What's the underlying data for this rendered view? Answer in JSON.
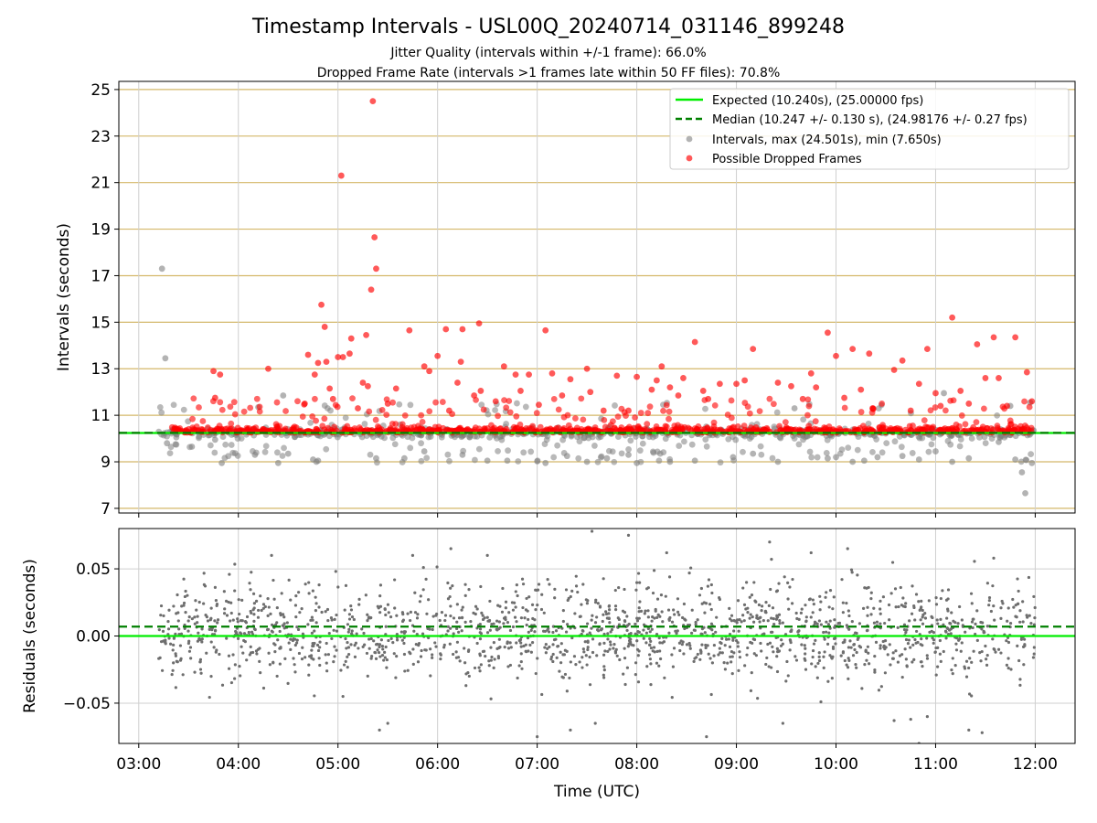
{
  "chart_data": [
    {
      "type": "scatter",
      "title": "Timestamp Intervals - USL00Q_20240714_031146_899248",
      "subtitle_1": "Jitter Quality (intervals within +/-1 frame): 66.0%",
      "subtitle_2": "Dropped Frame Rate (intervals >1 frames late within 50 FF files): 70.8%",
      "xlabel": "",
      "ylabel": "Intervals (seconds)",
      "xlim": [
        "02:48",
        "12:24"
      ],
      "ylim": [
        6.8,
        25.35
      ],
      "y_ticks": [
        "7",
        "9",
        "11",
        "13",
        "15",
        "17",
        "19",
        "21",
        "23",
        "25"
      ],
      "grid": true,
      "legend_position": "top-right",
      "legend": [
        "Expected (10.240s), (25.00000 fps)",
        "Median (10.247 +/- 0.130 s), (24.98176 +/- 0.27 fps)",
        "Intervals, max (24.501s), min (7.650s)",
        "Possible Dropped Frames"
      ],
      "expected_interval": 10.24,
      "median_interval": 10.247,
      "x_range": [
        "03:12",
        "12:00"
      ],
      "intervals_max": 24.501,
      "intervals_min": 7.65,
      "series": [
        {
          "name": "Intervals, max (24.501s), min (7.650s)",
          "style": "gray-dots",
          "points": [
            [
              "03:14",
              17.3
            ],
            [
              "03:16",
              13.45
            ],
            [
              "03:17",
              9.8
            ],
            [
              "03:32",
              9.65
            ],
            [
              "03:46",
              9.95
            ],
            [
              "03:50",
              8.95
            ],
            [
              "04:10",
              9.3
            ],
            [
              "04:12",
              11.35
            ],
            [
              "04:24",
              8.95
            ],
            [
              "04:27",
              11.85
            ],
            [
              "04:30",
              9.35
            ],
            [
              "04:45",
              9.1
            ],
            [
              "04:47",
              9.0
            ],
            [
              "04:48",
              9.05
            ],
            [
              "05:23",
              9.15
            ],
            [
              "05:40",
              9.15
            ],
            [
              "05:52",
              9.45
            ],
            [
              "06:15",
              9.3
            ],
            [
              "06:30",
              9.05
            ],
            [
              "06:42",
              9.05
            ],
            [
              "07:05",
              8.95
            ],
            [
              "07:18",
              9.25
            ],
            [
              "07:30",
              9.0
            ],
            [
              "07:42",
              9.15
            ],
            [
              "07:55",
              9.3
            ],
            [
              "08:00",
              8.95
            ],
            [
              "08:20",
              9.0
            ],
            [
              "08:35",
              9.05
            ],
            [
              "08:58",
              9.2
            ],
            [
              "09:10",
              9.35
            ],
            [
              "09:25",
              9.0
            ],
            [
              "09:35",
              11.3
            ],
            [
              "09:55",
              9.15
            ],
            [
              "10:00",
              9.2
            ],
            [
              "10:10",
              9.0
            ],
            [
              "10:17",
              9.05
            ],
            [
              "10:25",
              9.2
            ],
            [
              "10:40",
              9.25
            ],
            [
              "10:50",
              9.1
            ],
            [
              "11:00",
              9.45
            ],
            [
              "11:05",
              11.95
            ],
            [
              "11:10",
              9.0
            ],
            [
              "11:20",
              9.15
            ],
            [
              "11:38",
              9.85
            ],
            [
              "11:45",
              11.4
            ],
            [
              "11:48",
              9.1
            ],
            [
              "11:52",
              8.55
            ],
            [
              "11:54",
              7.65
            ],
            [
              "11:57",
              11.55
            ],
            [
              "11:58",
              8.95
            ]
          ]
        },
        {
          "name": "Possible Dropped Frames",
          "style": "red-dots",
          "points": [
            [
              "03:45",
              12.9
            ],
            [
              "03:46",
              11.75
            ],
            [
              "03:49",
              12.75
            ],
            [
              "04:18",
              13.0
            ],
            [
              "04:40",
              11.5
            ],
            [
              "04:42",
              13.6
            ],
            [
              "04:46",
              12.75
            ],
            [
              "04:48",
              13.25
            ],
            [
              "04:50",
              15.75
            ],
            [
              "04:52",
              14.8
            ],
            [
              "04:53",
              13.3
            ],
            [
              "04:55",
              12.15
            ],
            [
              "04:57",
              11.7
            ],
            [
              "05:00",
              13.5
            ],
            [
              "05:02",
              21.3
            ],
            [
              "05:03",
              13.5
            ],
            [
              "05:07",
              13.65
            ],
            [
              "05:08",
              14.3
            ],
            [
              "05:12",
              11.3
            ],
            [
              "05:15",
              12.4
            ],
            [
              "05:17",
              14.45
            ],
            [
              "05:18",
              12.25
            ],
            [
              "05:20",
              16.4
            ],
            [
              "05:21",
              24.5
            ],
            [
              "05:22",
              18.65
            ],
            [
              "05:23",
              17.3
            ],
            [
              "05:30",
              11.5
            ],
            [
              "05:35",
              12.15
            ],
            [
              "05:43",
              14.65
            ],
            [
              "05:52",
              13.1
            ],
            [
              "05:55",
              12.9
            ],
            [
              "06:00",
              13.55
            ],
            [
              "06:05",
              14.7
            ],
            [
              "06:07",
              11.2
            ],
            [
              "06:12",
              12.4
            ],
            [
              "06:14",
              13.3
            ],
            [
              "06:15",
              14.7
            ],
            [
              "06:22",
              11.85
            ],
            [
              "06:25",
              14.95
            ],
            [
              "06:26",
              12.05
            ],
            [
              "06:35",
              11.6
            ],
            [
              "06:40",
              13.1
            ],
            [
              "06:47",
              12.75
            ],
            [
              "06:50",
              12.05
            ],
            [
              "06:55",
              12.75
            ],
            [
              "07:01",
              11.45
            ],
            [
              "07:05",
              14.65
            ],
            [
              "07:09",
              12.8
            ],
            [
              "07:15",
              11.85
            ],
            [
              "07:20",
              12.55
            ],
            [
              "07:30",
              13.0
            ],
            [
              "07:32",
              12.0
            ],
            [
              "07:40",
              11.2
            ],
            [
              "07:48",
              12.7
            ],
            [
              "07:55",
              11.2
            ],
            [
              "08:00",
              12.65
            ],
            [
              "08:09",
              12.1
            ],
            [
              "08:12",
              12.5
            ],
            [
              "08:15",
              13.1
            ],
            [
              "08:20",
              12.2
            ],
            [
              "08:25",
              11.85
            ],
            [
              "08:28",
              12.6
            ],
            [
              "08:35",
              14.15
            ],
            [
              "08:40",
              12.05
            ],
            [
              "08:43",
              11.7
            ],
            [
              "08:50",
              12.35
            ],
            [
              "09:00",
              12.35
            ],
            [
              "09:05",
              12.5
            ],
            [
              "09:10",
              13.85
            ],
            [
              "09:25",
              12.4
            ],
            [
              "09:33",
              12.25
            ],
            [
              "09:40",
              11.7
            ],
            [
              "09:45",
              12.8
            ],
            [
              "09:48",
              12.2
            ],
            [
              "09:55",
              14.55
            ],
            [
              "10:00",
              13.55
            ],
            [
              "10:05",
              11.75
            ],
            [
              "10:10",
              13.85
            ],
            [
              "10:15",
              12.1
            ],
            [
              "10:20",
              13.65
            ],
            [
              "10:22",
              11.3
            ],
            [
              "10:35",
              12.95
            ],
            [
              "10:40",
              13.35
            ],
            [
              "10:45",
              11.2
            ],
            [
              "10:50",
              12.35
            ],
            [
              "10:55",
              13.85
            ],
            [
              "11:00",
              11.95
            ],
            [
              "11:03",
              11.4
            ],
            [
              "11:10",
              15.2
            ],
            [
              "11:15",
              12.05
            ],
            [
              "11:20",
              11.5
            ],
            [
              "11:25",
              14.05
            ],
            [
              "11:30",
              12.6
            ],
            [
              "11:35",
              14.35
            ],
            [
              "11:38",
              12.6
            ],
            [
              "11:43",
              11.4
            ],
            [
              "11:48",
              14.35
            ],
            [
              "11:55",
              12.85
            ],
            [
              "11:58",
              11.6
            ]
          ]
        }
      ],
      "colors": {
        "expected_line": "#00ee00",
        "median_line": "#008000",
        "intervals_dots": "#808080",
        "dropped_dots": "#ff0000",
        "grid_lines": "#d4b86a"
      }
    },
    {
      "type": "scatter",
      "xlabel": "Time (UTC)",
      "ylabel": "Residuals (seconds)",
      "xlim": [
        "02:48",
        "12:24"
      ],
      "ylim": [
        -0.08,
        0.08
      ],
      "y_ticks": [
        "−0.05",
        "0.00",
        "0.05"
      ],
      "x_ticks": [
        "03:00",
        "04:00",
        "05:00",
        "06:00",
        "07:00",
        "08:00",
        "09:00",
        "10:00",
        "11:00",
        "12:00"
      ],
      "grid": true,
      "expected_residual": 0.0,
      "median_residual": 0.007,
      "residual_spread": 0.02,
      "series": [
        {
          "name": "Residuals",
          "style": "small-gray-dots",
          "points": [
            [
              "04:20",
              0.06
            ],
            [
              "05:03",
              -0.045
            ],
            [
              "05:25",
              -0.07
            ],
            [
              "05:30",
              -0.065
            ],
            [
              "05:45",
              0.06
            ],
            [
              "06:08",
              0.065
            ],
            [
              "06:30",
              0.06
            ],
            [
              "07:00",
              -0.075
            ],
            [
              "07:20",
              -0.07
            ],
            [
              "07:33",
              0.078
            ],
            [
              "07:35",
              -0.065
            ],
            [
              "07:55",
              0.075
            ],
            [
              "08:18",
              0.062
            ],
            [
              "08:42",
              -0.075
            ],
            [
              "09:20",
              0.07
            ],
            [
              "09:28",
              -0.065
            ],
            [
              "09:45",
              0.062
            ],
            [
              "10:07",
              0.065
            ],
            [
              "10:35",
              -0.063
            ],
            [
              "10:45",
              -0.062
            ],
            [
              "10:50",
              -0.08
            ],
            [
              "10:55",
              -0.06
            ],
            [
              "11:20",
              -0.07
            ],
            [
              "11:28",
              -0.072
            ],
            [
              "11:35",
              0.058
            ]
          ]
        }
      ]
    }
  ]
}
